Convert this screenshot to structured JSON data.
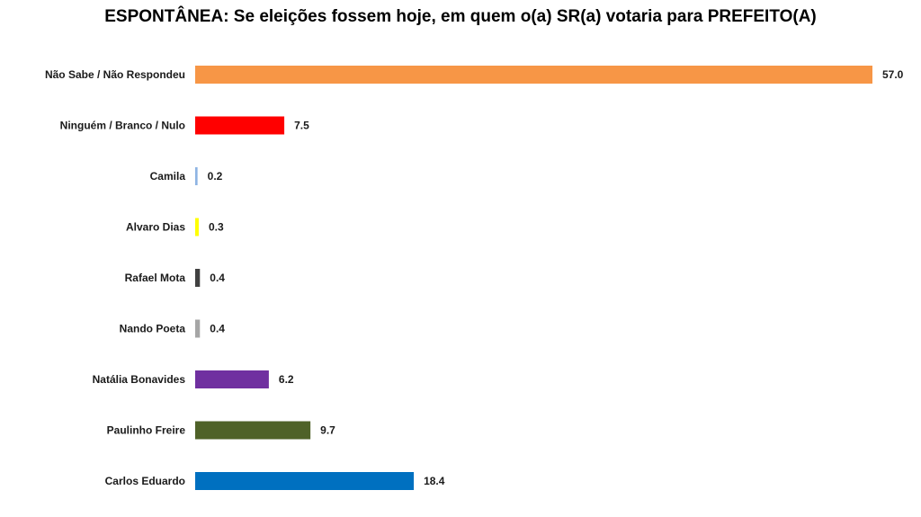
{
  "chart_data": {
    "type": "bar",
    "orientation": "horizontal",
    "title": "ESPONTÂNEA: Se eleições fossem hoje, em quem o(a) SR(a) votaria para PREFEITO(A)",
    "xlabel": "",
    "ylabel": "",
    "grid": false,
    "legend": "none",
    "xlim": [
      0,
      57.0
    ],
    "categories": [
      "Não Sabe / Não Respondeu",
      "Ninguém / Branco / Nulo",
      "Camila",
      "Alvaro Dias",
      "Rafael Mota",
      "Nando Poeta",
      "Natália Bonavides",
      "Paulinho Freire",
      "Carlos Eduardo"
    ],
    "values": [
      57.0,
      7.5,
      0.2,
      0.3,
      0.4,
      0.4,
      6.2,
      9.7,
      18.4
    ],
    "value_labels": [
      "57.0",
      "7.5",
      "0.2",
      "0.3",
      "0.4",
      "0.4",
      "6.2",
      "9.7",
      "18.4"
    ],
    "colors": [
      "#F79646",
      "#FF0000",
      "#8EB4E3",
      "#FFFF00",
      "#404040",
      "#A6A6A6",
      "#7030A0",
      "#4F6228",
      "#0070C0"
    ]
  }
}
